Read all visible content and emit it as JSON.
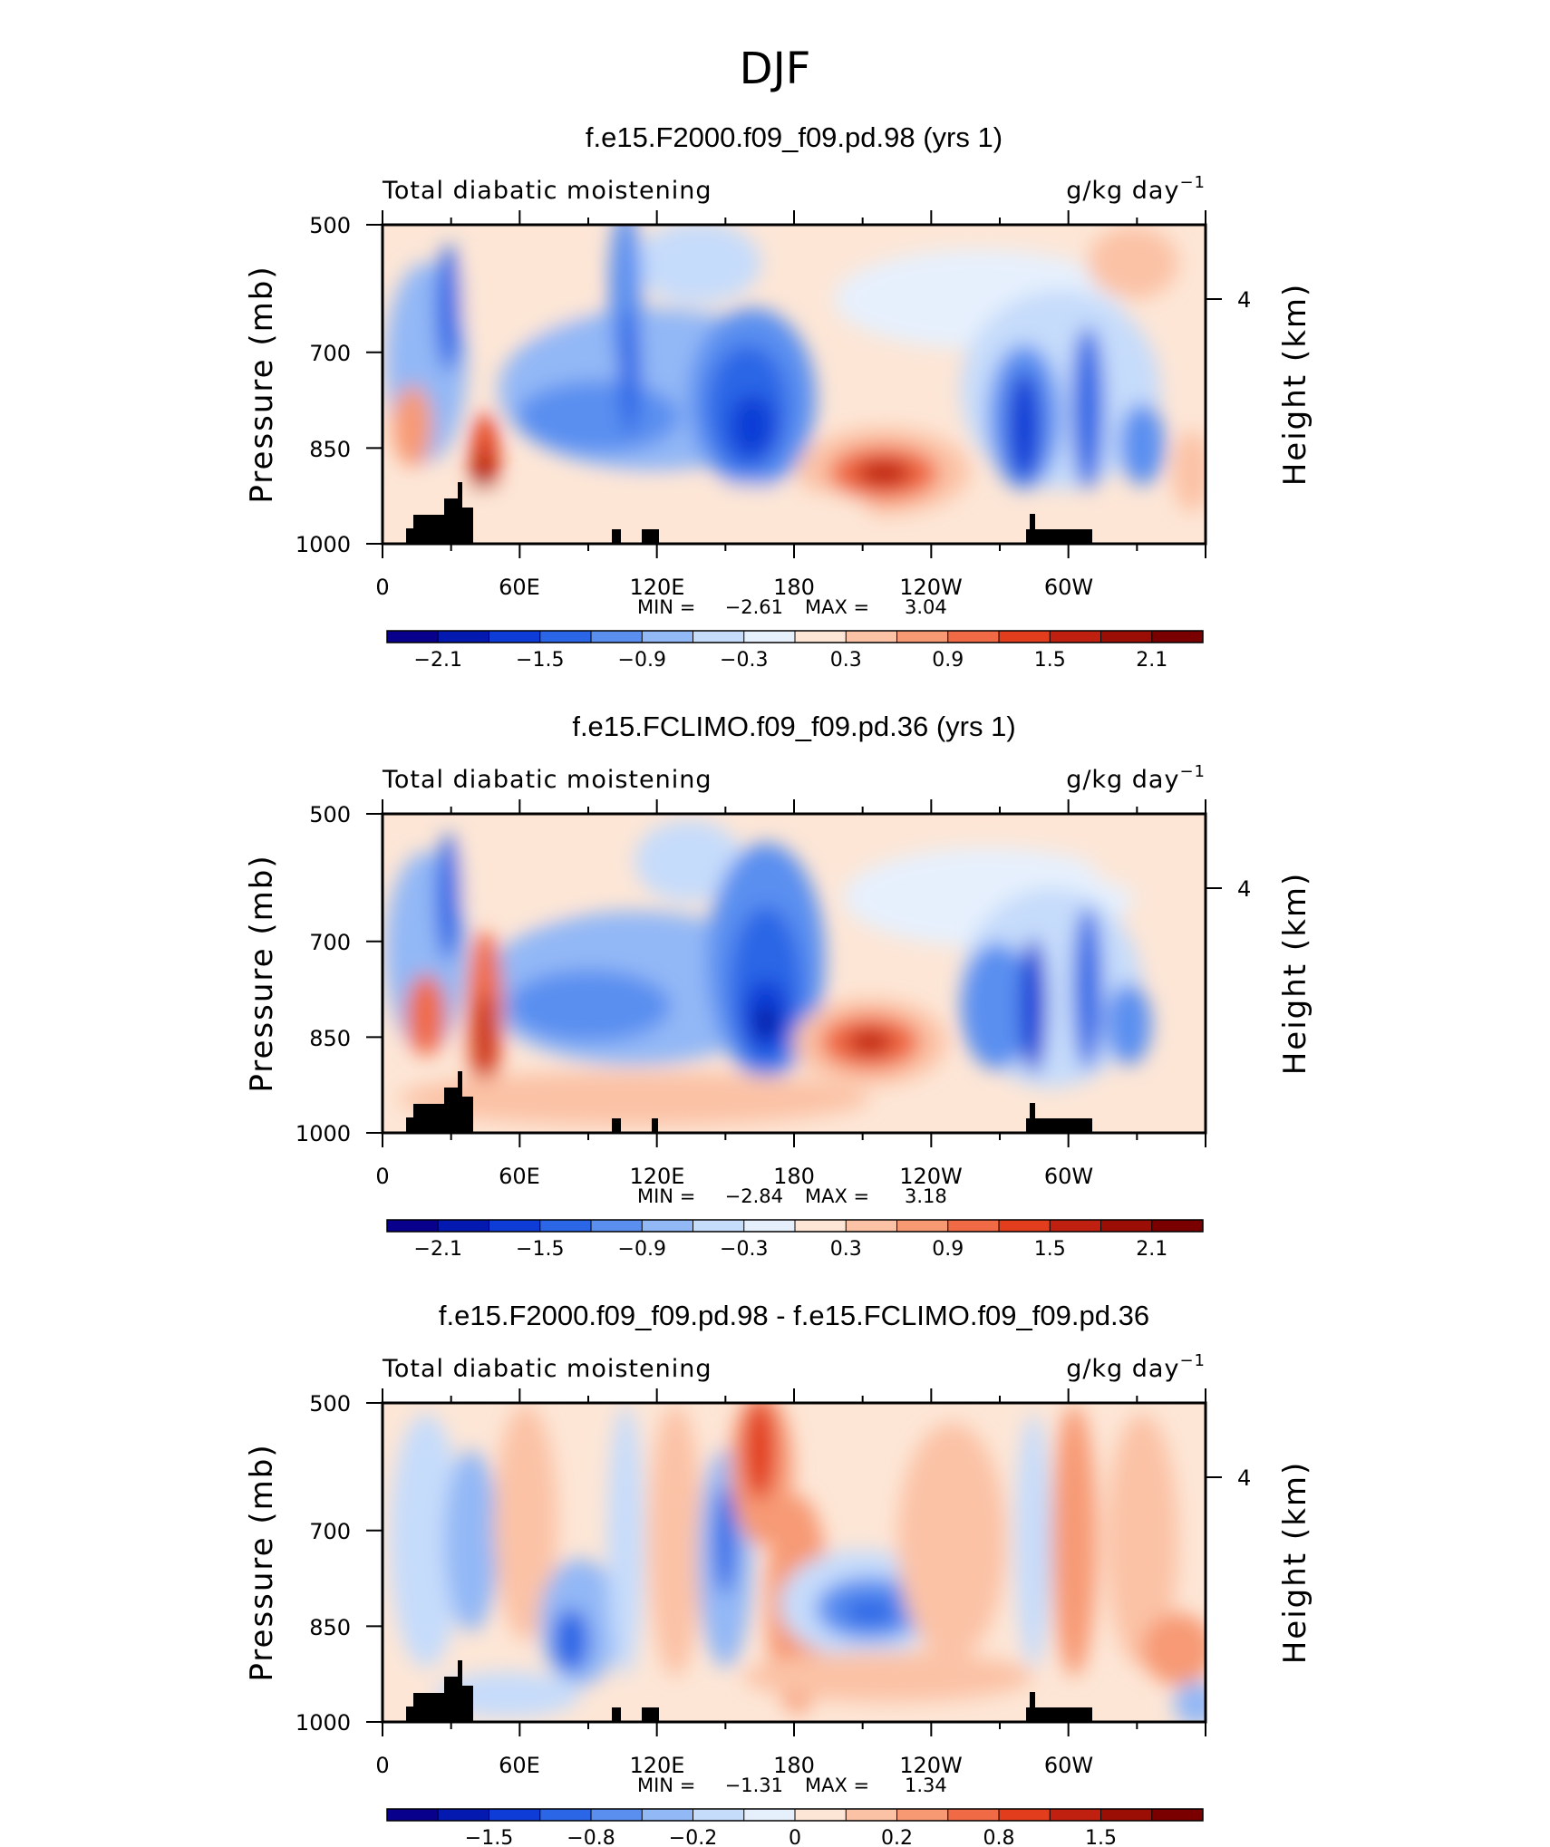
{
  "figure": {
    "title": "DJF",
    "field_label": "Total diabatic moistening",
    "units": "g/kg day",
    "units_exp": "−1",
    "ylabel": "Pressure (mb)",
    "ylabel_right": "Height (km)",
    "min_label": "MIN =",
    "max_label": "MAX ="
  },
  "chart_data": [
    {
      "type": "heatmap",
      "title": "f.e15.F2000.f09_f09.pd.98 (yrs 1)",
      "x_ticks": [
        "0",
        "60E",
        "120E",
        "180",
        "120W",
        "60W"
      ],
      "y_ticks": [
        "500",
        "700",
        "850",
        "1000"
      ],
      "y_right_ticks": [
        "4"
      ],
      "min": "−2.61",
      "max": "3.04",
      "colorbar_labels": [
        "−2.1",
        "−1.5",
        "−0.9",
        "−0.3",
        "0.3",
        "0.9",
        "1.5",
        "2.1"
      ],
      "features": [
        {
          "lon": 165,
          "p": 830,
          "value": -2.4
        },
        {
          "lon": 210,
          "p": 880,
          "value": 2.2
        },
        {
          "lon": 45,
          "p": 880,
          "value": 2.5
        },
        {
          "lon": 100,
          "p": 760,
          "value": -1.4
        },
        {
          "lon": 290,
          "p": 800,
          "value": -1.8
        }
      ]
    },
    {
      "type": "heatmap",
      "title": "f.e15.FCLIMO.f09_f09.pd.36 (yrs 1)",
      "x_ticks": [
        "0",
        "60E",
        "120E",
        "180",
        "120W",
        "60W"
      ],
      "y_ticks": [
        "500",
        "700",
        "850",
        "1000"
      ],
      "y_right_ticks": [
        "4"
      ],
      "min": "−2.84",
      "max": "3.18",
      "colorbar_labels": [
        "−2.1",
        "−1.5",
        "−0.9",
        "−0.3",
        "0.3",
        "0.9",
        "1.5",
        "2.1"
      ],
      "features": [
        {
          "lon": 168,
          "p": 840,
          "value": -2.6
        },
        {
          "lon": 212,
          "p": 860,
          "value": 2.3
        },
        {
          "lon": 45,
          "p": 850,
          "value": 2.7
        },
        {
          "lon": 100,
          "p": 780,
          "value": -1.5
        },
        {
          "lon": 290,
          "p": 800,
          "value": -2.0
        }
      ]
    },
    {
      "type": "heatmap",
      "title": "f.e15.F2000.f09_f09.pd.98 - f.e15.FCLIMO.f09_f09.pd.36",
      "x_ticks": [
        "0",
        "60E",
        "120E",
        "180",
        "120W",
        "60W"
      ],
      "y_ticks": [
        "500",
        "700",
        "850",
        "1000"
      ],
      "y_right_ticks": [
        "4"
      ],
      "min": "−1.31",
      "max": "1.34",
      "colorbar_labels": [
        "−1.5",
        "−0.8",
        "−0.2",
        "0",
        "0.2",
        "0.8",
        "1.5"
      ],
      "features": [
        {
          "lon": 166,
          "p": 560,
          "value": 1.3
        },
        {
          "lon": 215,
          "p": 840,
          "value": -1.2
        },
        {
          "lon": 80,
          "p": 860,
          "value": -1.0
        },
        {
          "lon": 60,
          "p": 700,
          "value": 0.7
        },
        {
          "lon": 140,
          "p": 720,
          "value": 0.6
        }
      ]
    }
  ],
  "colors": {
    "palette": [
      "#08008c",
      "#0419b0",
      "#0d3dd6",
      "#2a66e6",
      "#5a8ff0",
      "#93b8f6",
      "#c6dcfb",
      "#e6f0fd",
      "#fde6d6",
      "#fbc2a6",
      "#f79a74",
      "#f06a45",
      "#e23d1d",
      "#c0200f",
      "#9a0e06",
      "#7a0000"
    ],
    "topography": "#000000"
  }
}
